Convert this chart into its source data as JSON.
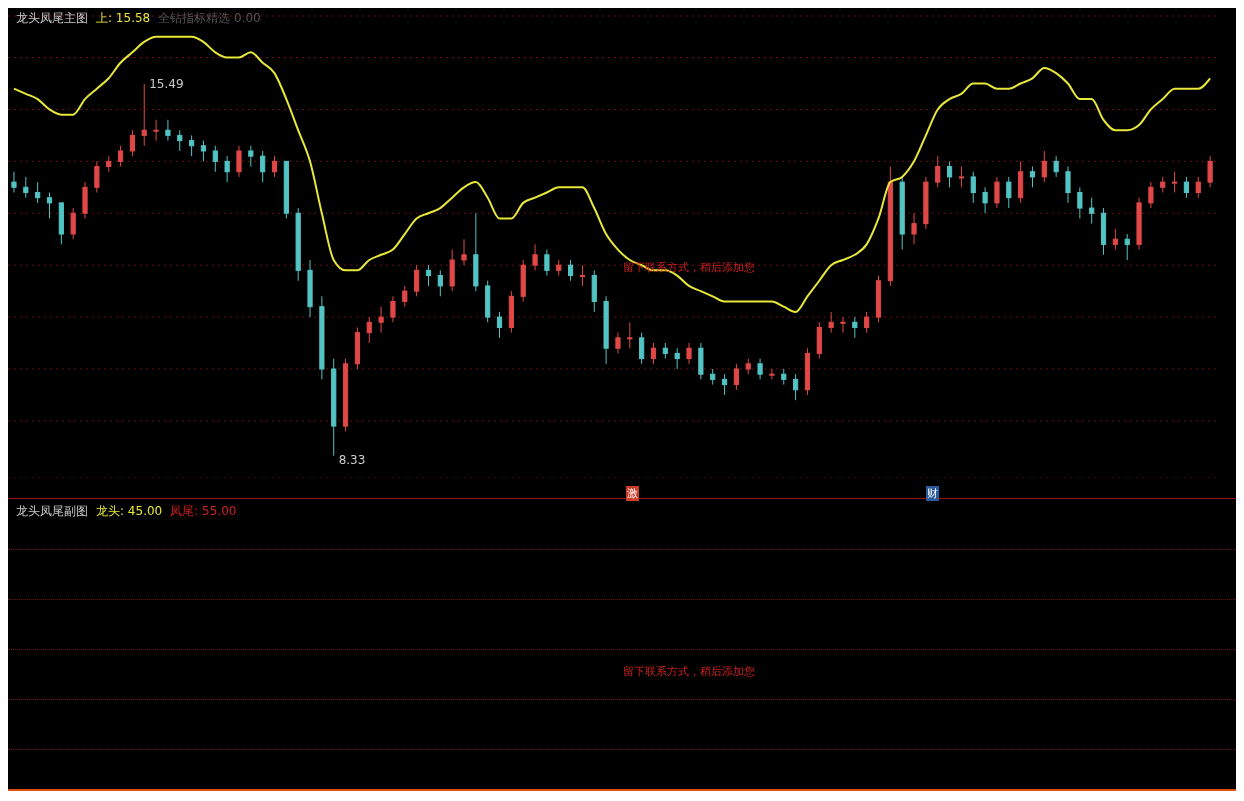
{
  "chart_data": [
    {
      "type": "candlestick",
      "title": "龙头凤尾主图",
      "annotations": [
        "上: 15.58",
        "全钻指标精选 0.00",
        "留下联系方式，稍后添加您",
        "激",
        "财",
        "15.49",
        "8.33"
      ],
      "categories": [
        null,
        null,
        null,
        null,
        null,
        null,
        null,
        null,
        null,
        null,
        null,
        null,
        null,
        null,
        null,
        null,
        null,
        null,
        null,
        null,
        null,
        null,
        null,
        null,
        null,
        null,
        null,
        null,
        null,
        null,
        null,
        null,
        null,
        null,
        null,
        null,
        null,
        null,
        null,
        null,
        null,
        null,
        null,
        null,
        null,
        null,
        null,
        null,
        null,
        null,
        null,
        null,
        null,
        null,
        null,
        null,
        null,
        null,
        null,
        null,
        null,
        null,
        null,
        null,
        null,
        null,
        null,
        null,
        null,
        null,
        null,
        null,
        null,
        null,
        null,
        null,
        null,
        null,
        null,
        null,
        null,
        null,
        null,
        null,
        null,
        null,
        null,
        null,
        null,
        null,
        null,
        null,
        null,
        null,
        null,
        null,
        null,
        null,
        null,
        null,
        null,
        null
      ],
      "colors": [
        "#52c4c4",
        "#52c4c4",
        "#52c4c4",
        "#52c4c4",
        "#52c4c4",
        "#e04848",
        "#e04848",
        "#e04848",
        "#e04848",
        "#e04848",
        "#e04848",
        "#e04848",
        "#e04848",
        "#52c4c4",
        "#52c4c4",
        "#52c4c4",
        "#52c4c4",
        "#52c4c4",
        "#52c4c4",
        "#e04848",
        "#52c4c4",
        "#52c4c4",
        "#e04848",
        "#52c4c4",
        "#52c4c4",
        "#52c4c4",
        "#52c4c4",
        "#52c4c4",
        "#e04848",
        "#e04848",
        "#e04848",
        "#e04848",
        "#e04848",
        "#e04848",
        "#e04848",
        "#52c4c4",
        "#52c4c4",
        "#e04848",
        "#e04848",
        "#52c4c4",
        "#52c4c4",
        "#52c4c4",
        "#e04848",
        "#e04848",
        "#e04848",
        "#52c4c4",
        "#e04848",
        "#52c4c4",
        "#e04848",
        "#52c4c4",
        "#52c4c4",
        "#e04848",
        "#e04848",
        "#52c4c4",
        "#e04848",
        "#52c4c4",
        "#52c4c4",
        "#e04848",
        "#52c4c4",
        "#52c4c4",
        "#52c4c4",
        "#e04848",
        "#e04848",
        "#52c4c4",
        "#e04848",
        "#52c4c4",
        "#52c4c4",
        "#e04848",
        "#e04848",
        "#e04848",
        "#e04848",
        "#52c4c4",
        "#e04848",
        "#e04848",
        "#e04848",
        "#52c4c4",
        "#e04848",
        "#e04848",
        "#e04848",
        "#52c4c4",
        "#e04848",
        "#52c4c4",
        "#52c4c4",
        "#e04848",
        "#52c4c4",
        "#e04848",
        "#52c4c4",
        "#e04848",
        "#52c4c4",
        "#52c4c4",
        "#52c4c4",
        "#52c4c4",
        "#52c4c4",
        "#e04848",
        "#52c4c4",
        "#e04848",
        "#e04848",
        "#e04848",
        "#e04848",
        "#52c4c4",
        "#e04848",
        "#e04848"
      ],
      "ohlc": [
        [
          13.6,
          13.8,
          13.4,
          13.5
        ],
        [
          13.5,
          13.7,
          13.3,
          13.4
        ],
        [
          13.4,
          13.6,
          13.2,
          13.3
        ],
        [
          13.3,
          13.4,
          12.9,
          13.2
        ],
        [
          13.2,
          13.2,
          12.4,
          12.6
        ],
        [
          12.6,
          13.1,
          12.5,
          13.0
        ],
        [
          13.0,
          13.6,
          12.9,
          13.5
        ],
        [
          13.5,
          14.0,
          13.4,
          13.9
        ],
        [
          13.9,
          14.1,
          13.8,
          14.0
        ],
        [
          14.0,
          14.3,
          13.9,
          14.2
        ],
        [
          14.2,
          14.6,
          14.1,
          14.5
        ],
        [
          14.5,
          15.49,
          14.3,
          14.6
        ],
        [
          14.6,
          14.8,
          14.4,
          14.6
        ],
        [
          14.6,
          14.8,
          14.4,
          14.5
        ],
        [
          14.5,
          14.6,
          14.2,
          14.4
        ],
        [
          14.4,
          14.5,
          14.1,
          14.3
        ],
        [
          14.3,
          14.4,
          14.0,
          14.2
        ],
        [
          14.2,
          14.3,
          13.8,
          14.0
        ],
        [
          14.0,
          14.1,
          13.6,
          13.8
        ],
        [
          13.8,
          14.3,
          13.7,
          14.2
        ],
        [
          14.2,
          14.3,
          13.9,
          14.1
        ],
        [
          14.1,
          14.2,
          13.6,
          13.8
        ],
        [
          13.8,
          14.1,
          13.7,
          14.0
        ],
        [
          14.0,
          14.0,
          12.9,
          13.0
        ],
        [
          13.0,
          13.1,
          11.7,
          11.9
        ],
        [
          11.9,
          12.1,
          11.0,
          11.2
        ],
        [
          11.2,
          11.4,
          9.8,
          10.0
        ],
        [
          10.0,
          10.2,
          8.33,
          8.9
        ],
        [
          8.9,
          10.2,
          8.8,
          10.1
        ],
        [
          10.1,
          10.8,
          10.0,
          10.7
        ],
        [
          10.7,
          11.0,
          10.5,
          10.9
        ],
        [
          10.9,
          11.2,
          10.7,
          11.0
        ],
        [
          11.0,
          11.4,
          10.9,
          11.3
        ],
        [
          11.3,
          11.6,
          11.2,
          11.5
        ],
        [
          11.5,
          12.0,
          11.4,
          11.9
        ],
        [
          11.9,
          12.0,
          11.6,
          11.8
        ],
        [
          11.8,
          11.9,
          11.4,
          11.6
        ],
        [
          11.6,
          12.3,
          11.5,
          12.1
        ],
        [
          12.1,
          12.5,
          12.0,
          12.2
        ],
        [
          12.2,
          13.0,
          11.5,
          11.6
        ],
        [
          11.6,
          11.7,
          10.9,
          11.0
        ],
        [
          11.0,
          11.1,
          10.6,
          10.8
        ],
        [
          10.8,
          11.5,
          10.7,
          11.4
        ],
        [
          11.4,
          12.1,
          11.3,
          12.0
        ],
        [
          12.0,
          12.4,
          11.9,
          12.2
        ],
        [
          12.2,
          12.3,
          11.8,
          11.9
        ],
        [
          11.9,
          12.1,
          11.8,
          12.0
        ],
        [
          12.0,
          12.1,
          11.7,
          11.8
        ],
        [
          11.8,
          12.0,
          11.6,
          11.8
        ],
        [
          11.8,
          11.9,
          11.1,
          11.3
        ],
        [
          11.3,
          11.4,
          10.1,
          10.4
        ],
        [
          10.4,
          10.7,
          10.3,
          10.6
        ],
        [
          10.6,
          10.9,
          10.4,
          10.6
        ],
        [
          10.6,
          10.7,
          10.1,
          10.2
        ],
        [
          10.2,
          10.5,
          10.1,
          10.4
        ],
        [
          10.4,
          10.5,
          10.2,
          10.3
        ],
        [
          10.3,
          10.4,
          10.0,
          10.2
        ],
        [
          10.2,
          10.5,
          10.1,
          10.4
        ],
        [
          10.4,
          10.5,
          9.8,
          9.9
        ],
        [
          9.9,
          10.0,
          9.7,
          9.8
        ],
        [
          9.8,
          9.9,
          9.5,
          9.7
        ],
        [
          9.7,
          10.1,
          9.6,
          10.0
        ],
        [
          10.0,
          10.2,
          9.9,
          10.1
        ],
        [
          10.1,
          10.2,
          9.8,
          9.9
        ],
        [
          9.9,
          10.0,
          9.8,
          9.9
        ],
        [
          9.9,
          10.0,
          9.7,
          9.8
        ],
        [
          9.8,
          9.9,
          9.4,
          9.6
        ],
        [
          9.6,
          10.4,
          9.5,
          10.3
        ],
        [
          10.3,
          10.9,
          10.2,
          10.8
        ],
        [
          10.8,
          11.1,
          10.7,
          10.9
        ],
        [
          10.9,
          11.0,
          10.7,
          10.9
        ],
        [
          10.9,
          11.0,
          10.6,
          10.8
        ],
        [
          10.8,
          11.1,
          10.7,
          11.0
        ],
        [
          11.0,
          11.8,
          10.9,
          11.7
        ],
        [
          11.7,
          13.9,
          11.6,
          13.6
        ],
        [
          13.6,
          13.7,
          12.3,
          12.6
        ],
        [
          12.6,
          13.0,
          12.4,
          12.8
        ],
        [
          12.8,
          13.7,
          12.7,
          13.6
        ],
        [
          13.6,
          14.1,
          13.5,
          13.9
        ],
        [
          13.9,
          14.0,
          13.5,
          13.7
        ],
        [
          13.7,
          13.9,
          13.5,
          13.7
        ],
        [
          13.7,
          13.8,
          13.2,
          13.4
        ],
        [
          13.4,
          13.5,
          13.0,
          13.2
        ],
        [
          13.2,
          13.7,
          13.1,
          13.6
        ],
        [
          13.6,
          13.7,
          13.1,
          13.3
        ],
        [
          13.3,
          14.0,
          13.2,
          13.8
        ],
        [
          13.8,
          13.9,
          13.5,
          13.7
        ],
        [
          13.7,
          14.2,
          13.6,
          14.0
        ],
        [
          14.0,
          14.1,
          13.7,
          13.8
        ],
        [
          13.8,
          13.9,
          13.2,
          13.4
        ],
        [
          13.4,
          13.5,
          12.9,
          13.1
        ],
        [
          13.1,
          13.3,
          12.8,
          13.0
        ],
        [
          13.0,
          13.1,
          12.2,
          12.4
        ],
        [
          12.4,
          12.7,
          12.3,
          12.5
        ],
        [
          12.5,
          12.6,
          12.1,
          12.4
        ],
        [
          12.4,
          13.3,
          12.3,
          13.2
        ],
        [
          13.2,
          13.6,
          13.1,
          13.5
        ],
        [
          13.5,
          13.7,
          13.4,
          13.6
        ],
        [
          13.6,
          13.8,
          13.4,
          13.6
        ],
        [
          13.6,
          13.7,
          13.3,
          13.4
        ],
        [
          13.4,
          13.7,
          13.3,
          13.6
        ],
        [
          13.6,
          14.1,
          13.5,
          14.0
        ]
      ],
      "series": [
        {
          "type": "line",
          "color": "#e8e83a",
          "values": [
            15.4,
            15.3,
            15.2,
            15.0,
            14.9,
            14.9,
            15.2,
            15.4,
            15.6,
            15.9,
            16.1,
            16.3,
            16.4,
            16.4,
            16.4,
            16.4,
            16.3,
            16.1,
            16.0,
            16.0,
            16.1,
            15.9,
            15.7,
            15.2,
            14.6,
            14.0,
            13.0,
            12.1,
            11.9,
            11.9,
            12.1,
            12.2,
            12.3,
            12.6,
            12.9,
            13.0,
            13.1,
            13.3,
            13.5,
            13.6,
            13.3,
            12.9,
            12.9,
            13.2,
            13.3,
            13.4,
            13.5,
            13.5,
            13.5,
            13.1,
            12.6,
            12.3,
            12.1,
            12.0,
            11.9,
            11.9,
            11.8,
            11.6,
            11.5,
            11.4,
            11.3,
            11.3,
            11.3,
            11.3,
            11.3,
            11.2,
            11.1,
            11.4,
            11.7,
            12.0,
            12.1,
            12.2,
            12.4,
            12.9,
            13.6,
            13.7,
            14.0,
            14.5,
            15.0,
            15.2,
            15.3,
            15.5,
            15.5,
            15.4,
            15.4,
            15.5,
            15.6,
            15.8,
            15.7,
            15.5,
            15.2,
            15.2,
            14.8,
            14.6,
            14.6,
            14.7,
            15.0,
            15.2,
            15.4,
            15.4,
            15.4,
            15.6
          ]
        }
      ],
      "ylim": [
        7.9,
        16.8
      ],
      "grid": "y",
      "yticks": [
        {
          "value": 9,
          "label": null
        },
        {
          "value": 10,
          "label": null
        },
        {
          "value": 11,
          "label": null
        },
        {
          "value": 12,
          "label": null
        },
        {
          "value": 13,
          "label": null
        },
        {
          "value": 14,
          "label": null
        },
        {
          "value": 15,
          "label": null
        },
        {
          "value": 16,
          "label": null
        }
      ]
    },
    {
      "type": "other",
      "title": "龙头凤尾副图",
      "annotations": [
        "龙头: 45.00",
        "凤尾: 55.00",
        "留下联系方式，稍后添加您"
      ]
    }
  ]
}
